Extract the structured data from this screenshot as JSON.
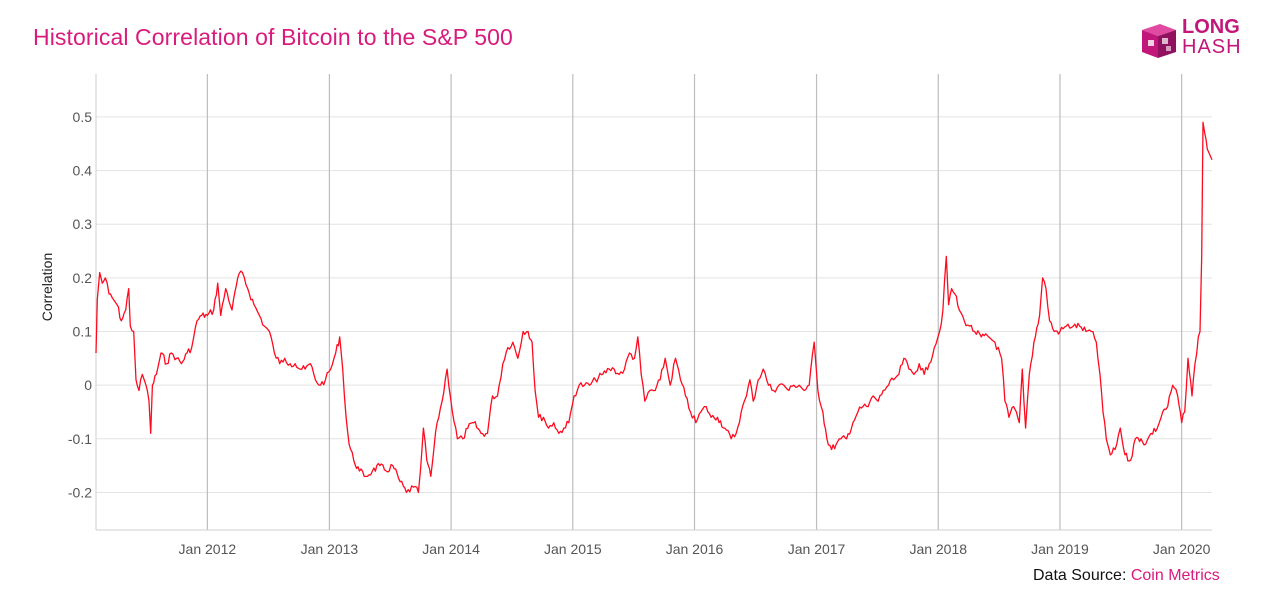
{
  "header": {
    "title": "Historical Correlation of Bitcoin to the S&P 500"
  },
  "logo": {
    "line1": "LONG",
    "line2": "HASH",
    "color": "#c2177a"
  },
  "footer": {
    "source_label": "Data Source:",
    "source_name": "Coin Metrics"
  },
  "chart_data": {
    "type": "line",
    "title": "Historical Correlation of Bitcoin to the S&P 500",
    "ylabel": "Correlation",
    "xlabel": "",
    "ylim": [
      -0.27,
      0.58
    ],
    "xlim": [
      "2011-02-01",
      "2020-04-01"
    ],
    "y_ticks": [
      0.5,
      0.4,
      0.3,
      0.2,
      0.1,
      0,
      -0.1,
      -0.2
    ],
    "y_tick_labels": [
      "0.5",
      "0.4",
      "0.3",
      "0.2",
      "0.1",
      "0",
      "-0.1",
      "-0.2"
    ],
    "x_ticks": [
      "2012-01-01",
      "2013-01-01",
      "2014-01-01",
      "2015-01-01",
      "2016-01-01",
      "2017-01-01",
      "2018-01-01",
      "2019-01-01",
      "2020-01-01"
    ],
    "x_tick_labels": [
      "Jan 2012",
      "Jan 2013",
      "Jan 2014",
      "Jan 2015",
      "Jan 2016",
      "Jan 2017",
      "Jan 2018",
      "Jan 2019",
      "Jan 2020"
    ],
    "grid": true,
    "line_color": "#ff0a1e",
    "series": [
      {
        "values": [
          [
            "2011-02-01",
            0.06
          ],
          [
            "2011-02-05",
            0.16
          ],
          [
            "2011-02-12",
            0.21
          ],
          [
            "2011-02-20",
            0.19
          ],
          [
            "2011-03-01",
            0.2
          ],
          [
            "2011-03-12",
            0.17
          ],
          [
            "2011-03-25",
            0.16
          ],
          [
            "2011-04-05",
            0.15
          ],
          [
            "2011-04-18",
            0.12
          ],
          [
            "2011-05-01",
            0.14
          ],
          [
            "2011-05-10",
            0.18
          ],
          [
            "2011-05-15",
            0.11
          ],
          [
            "2011-05-25",
            0.1
          ],
          [
            "2011-06-01",
            0.01
          ],
          [
            "2011-06-10",
            -0.01
          ],
          [
            "2011-06-20",
            0.02
          ],
          [
            "2011-07-01",
            0.0
          ],
          [
            "2011-07-10",
            -0.03
          ],
          [
            "2011-07-15",
            -0.09
          ],
          [
            "2011-07-20",
            0.0
          ],
          [
            "2011-08-01",
            0.02
          ],
          [
            "2011-08-15",
            0.06
          ],
          [
            "2011-09-01",
            0.04
          ],
          [
            "2011-09-15",
            0.06
          ],
          [
            "2011-10-01",
            0.05
          ],
          [
            "2011-10-15",
            0.04
          ],
          [
            "2011-11-01",
            0.06
          ],
          [
            "2011-11-15",
            0.07
          ],
          [
            "2011-12-01",
            0.12
          ],
          [
            "2011-12-15",
            0.13
          ],
          [
            "2012-01-01",
            0.13
          ],
          [
            "2012-01-20",
            0.14
          ],
          [
            "2012-02-01",
            0.19
          ],
          [
            "2012-02-10",
            0.13
          ],
          [
            "2012-02-25",
            0.18
          ],
          [
            "2012-03-15",
            0.14
          ],
          [
            "2012-04-01",
            0.2
          ],
          [
            "2012-04-15",
            0.21
          ],
          [
            "2012-05-01",
            0.18
          ],
          [
            "2012-05-20",
            0.15
          ],
          [
            "2012-06-05",
            0.13
          ],
          [
            "2012-06-20",
            0.11
          ],
          [
            "2012-07-05",
            0.1
          ],
          [
            "2012-07-20",
            0.06
          ],
          [
            "2012-08-05",
            0.04
          ],
          [
            "2012-08-20",
            0.05
          ],
          [
            "2012-09-05",
            0.04
          ],
          [
            "2012-09-20",
            0.04
          ],
          [
            "2012-10-05",
            0.03
          ],
          [
            "2012-10-20",
            0.03
          ],
          [
            "2012-11-05",
            0.04
          ],
          [
            "2012-11-20",
            0.01
          ],
          [
            "2012-12-05",
            0.0
          ],
          [
            "2012-12-20",
            0.01
          ],
          [
            "2013-01-05",
            0.03
          ],
          [
            "2013-01-20",
            0.06
          ],
          [
            "2013-02-01",
            0.09
          ],
          [
            "2013-02-10",
            0.03
          ],
          [
            "2013-02-20",
            -0.06
          ],
          [
            "2013-03-01",
            -0.11
          ],
          [
            "2013-03-15",
            -0.14
          ],
          [
            "2013-04-01",
            -0.16
          ],
          [
            "2013-04-20",
            -0.17
          ],
          [
            "2013-05-10",
            -0.16
          ],
          [
            "2013-06-01",
            -0.15
          ],
          [
            "2013-06-20",
            -0.16
          ],
          [
            "2013-07-10",
            -0.15
          ],
          [
            "2013-08-01",
            -0.18
          ],
          [
            "2013-08-20",
            -0.2
          ],
          [
            "2013-09-10",
            -0.19
          ],
          [
            "2013-09-25",
            -0.2
          ],
          [
            "2013-10-01",
            -0.16
          ],
          [
            "2013-10-10",
            -0.08
          ],
          [
            "2013-10-20",
            -0.14
          ],
          [
            "2013-11-01",
            -0.17
          ],
          [
            "2013-11-20",
            -0.07
          ],
          [
            "2013-12-05",
            -0.03
          ],
          [
            "2013-12-20",
            0.03
          ],
          [
            "2014-01-05",
            -0.05
          ],
          [
            "2014-01-20",
            -0.1
          ],
          [
            "2014-02-05",
            -0.1
          ],
          [
            "2014-02-20",
            -0.08
          ],
          [
            "2014-03-10",
            -0.07
          ],
          [
            "2014-04-01",
            -0.09
          ],
          [
            "2014-04-20",
            -0.09
          ],
          [
            "2014-05-05",
            -0.02
          ],
          [
            "2014-05-20",
            -0.02
          ],
          [
            "2014-06-05",
            0.04
          ],
          [
            "2014-06-20",
            0.07
          ],
          [
            "2014-07-05",
            0.08
          ],
          [
            "2014-07-20",
            0.05
          ],
          [
            "2014-08-05",
            0.1
          ],
          [
            "2014-08-20",
            0.1
          ],
          [
            "2014-09-01",
            0.08
          ],
          [
            "2014-09-10",
            -0.01
          ],
          [
            "2014-09-20",
            -0.06
          ],
          [
            "2014-10-05",
            -0.06
          ],
          [
            "2014-10-20",
            -0.08
          ],
          [
            "2014-11-05",
            -0.07
          ],
          [
            "2014-11-20",
            -0.09
          ],
          [
            "2014-12-05",
            -0.08
          ],
          [
            "2014-12-20",
            -0.07
          ],
          [
            "2015-01-05",
            -0.02
          ],
          [
            "2015-01-20",
            0.0
          ],
          [
            "2015-02-05",
            0.0
          ],
          [
            "2015-02-20",
            0.0
          ],
          [
            "2015-03-10",
            0.01
          ],
          [
            "2015-04-01",
            0.02
          ],
          [
            "2015-04-20",
            0.03
          ],
          [
            "2015-05-05",
            0.03
          ],
          [
            "2015-05-20",
            0.02
          ],
          [
            "2015-06-05",
            0.03
          ],
          [
            "2015-06-20",
            0.06
          ],
          [
            "2015-07-05",
            0.05
          ],
          [
            "2015-07-15",
            0.09
          ],
          [
            "2015-07-25",
            0.02
          ],
          [
            "2015-08-05",
            -0.03
          ],
          [
            "2015-08-20",
            -0.01
          ],
          [
            "2015-09-05",
            -0.01
          ],
          [
            "2015-09-20",
            0.01
          ],
          [
            "2015-10-05",
            0.05
          ],
          [
            "2015-10-20",
            0.0
          ],
          [
            "2015-11-05",
            0.05
          ],
          [
            "2015-11-20",
            0.01
          ],
          [
            "2015-12-05",
            -0.02
          ],
          [
            "2015-12-20",
            -0.05
          ],
          [
            "2016-01-05",
            -0.07
          ],
          [
            "2016-01-20",
            -0.05
          ],
          [
            "2016-02-05",
            -0.04
          ],
          [
            "2016-02-20",
            -0.06
          ],
          [
            "2016-03-10",
            -0.06
          ],
          [
            "2016-04-01",
            -0.08
          ],
          [
            "2016-04-20",
            -0.1
          ],
          [
            "2016-05-05",
            -0.09
          ],
          [
            "2016-05-20",
            -0.05
          ],
          [
            "2016-06-05",
            -0.02
          ],
          [
            "2016-06-15",
            0.01
          ],
          [
            "2016-06-25",
            -0.03
          ],
          [
            "2016-07-10",
            0.01
          ],
          [
            "2016-07-25",
            0.03
          ],
          [
            "2016-08-10",
            0.0
          ],
          [
            "2016-08-25",
            -0.01
          ],
          [
            "2016-09-10",
            0.0
          ],
          [
            "2016-09-25",
            0.0
          ],
          [
            "2016-10-10",
            -0.01
          ],
          [
            "2016-10-25",
            0.0
          ],
          [
            "2016-11-10",
            0.0
          ],
          [
            "2016-11-25",
            -0.01
          ],
          [
            "2016-12-10",
            0.0
          ],
          [
            "2016-12-25",
            0.08
          ],
          [
            "2017-01-05",
            -0.01
          ],
          [
            "2017-01-20",
            -0.05
          ],
          [
            "2017-02-01",
            -0.1
          ],
          [
            "2017-02-15",
            -0.12
          ],
          [
            "2017-03-01",
            -0.11
          ],
          [
            "2017-03-15",
            -0.1
          ],
          [
            "2017-04-01",
            -0.1
          ],
          [
            "2017-04-20",
            -0.07
          ],
          [
            "2017-05-05",
            -0.05
          ],
          [
            "2017-05-20",
            -0.04
          ],
          [
            "2017-06-05",
            -0.04
          ],
          [
            "2017-06-20",
            -0.02
          ],
          [
            "2017-07-05",
            -0.03
          ],
          [
            "2017-07-20",
            -0.01
          ],
          [
            "2017-08-05",
            0.0
          ],
          [
            "2017-08-20",
            0.01
          ],
          [
            "2017-09-05",
            0.02
          ],
          [
            "2017-09-20",
            0.05
          ],
          [
            "2017-10-05",
            0.03
          ],
          [
            "2017-10-20",
            0.02
          ],
          [
            "2017-11-05",
            0.04
          ],
          [
            "2017-11-20",
            0.02
          ],
          [
            "2017-12-05",
            0.04
          ],
          [
            "2017-12-20",
            0.07
          ],
          [
            "2018-01-05",
            0.1
          ],
          [
            "2018-01-15",
            0.14
          ],
          [
            "2018-01-25",
            0.24
          ],
          [
            "2018-02-01",
            0.15
          ],
          [
            "2018-02-10",
            0.18
          ],
          [
            "2018-02-20",
            0.17
          ],
          [
            "2018-03-05",
            0.14
          ],
          [
            "2018-03-20",
            0.12
          ],
          [
            "2018-04-05",
            0.11
          ],
          [
            "2018-04-20",
            0.1
          ],
          [
            "2018-05-10",
            0.09
          ],
          [
            "2018-06-01",
            0.09
          ],
          [
            "2018-06-20",
            0.08
          ],
          [
            "2018-07-10",
            0.05
          ],
          [
            "2018-07-20",
            -0.03
          ],
          [
            "2018-08-01",
            -0.06
          ],
          [
            "2018-08-15",
            -0.04
          ],
          [
            "2018-09-01",
            -0.07
          ],
          [
            "2018-09-10",
            0.03
          ],
          [
            "2018-09-20",
            -0.08
          ],
          [
            "2018-10-01",
            0.02
          ],
          [
            "2018-10-15",
            0.08
          ],
          [
            "2018-11-01",
            0.13
          ],
          [
            "2018-11-10",
            0.2
          ],
          [
            "2018-11-20",
            0.18
          ],
          [
            "2018-12-01",
            0.12
          ],
          [
            "2018-12-15",
            0.1
          ],
          [
            "2019-01-01",
            0.1
          ],
          [
            "2019-01-20",
            0.11
          ],
          [
            "2019-02-10",
            0.11
          ],
          [
            "2019-03-01",
            0.11
          ],
          [
            "2019-03-20",
            0.1
          ],
          [
            "2019-04-05",
            0.1
          ],
          [
            "2019-04-20",
            0.08
          ],
          [
            "2019-05-01",
            0.02
          ],
          [
            "2019-05-10",
            -0.05
          ],
          [
            "2019-05-20",
            -0.1
          ],
          [
            "2019-06-01",
            -0.13
          ],
          [
            "2019-06-15",
            -0.12
          ],
          [
            "2019-07-01",
            -0.08
          ],
          [
            "2019-07-15",
            -0.13
          ],
          [
            "2019-08-01",
            -0.14
          ],
          [
            "2019-08-15",
            -0.1
          ],
          [
            "2019-09-01",
            -0.1
          ],
          [
            "2019-09-15",
            -0.11
          ],
          [
            "2019-10-01",
            -0.09
          ],
          [
            "2019-10-20",
            -0.08
          ],
          [
            "2019-11-05",
            -0.05
          ],
          [
            "2019-11-20",
            -0.04
          ],
          [
            "2019-12-05",
            0.0
          ],
          [
            "2019-12-20",
            -0.02
          ],
          [
            "2020-01-01",
            -0.07
          ],
          [
            "2020-01-10",
            -0.05
          ],
          [
            "2020-01-20",
            0.05
          ],
          [
            "2020-02-01",
            -0.02
          ],
          [
            "2020-02-10",
            0.04
          ],
          [
            "2020-02-20",
            0.09
          ],
          [
            "2020-02-25",
            0.1
          ],
          [
            "2020-03-01",
            0.24
          ],
          [
            "2020-03-05",
            0.49
          ],
          [
            "2020-03-10",
            0.47
          ],
          [
            "2020-03-18",
            0.44
          ],
          [
            "2020-03-25",
            0.43
          ],
          [
            "2020-04-01",
            0.42
          ]
        ]
      }
    ]
  }
}
